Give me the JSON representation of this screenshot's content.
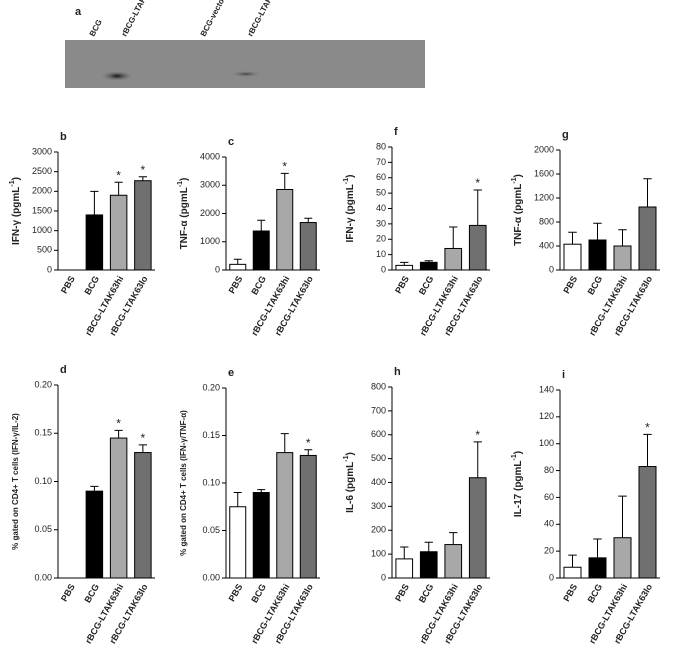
{
  "blot": {
    "label": "a",
    "lanes": [
      "BCG",
      "rBCG-LTAK63hi",
      "BCG-vector",
      "rBCG-LTAK63lo"
    ]
  },
  "chart_data": [
    {
      "type": "bar",
      "label": "b",
      "ylabel": [
        "IFN-γ (pgmL",
        "-1",
        ")"
      ],
      "categories": [
        "PBS",
        "BCG",
        "rBCG-LTAK63hi",
        "rBCG-LTAK63lo"
      ],
      "colors": [
        "#ffffff",
        "#000000",
        "#a8a8a8",
        "#707070"
      ],
      "values": [
        0,
        1400,
        1900,
        2270
      ],
      "errors": [
        0,
        600,
        330,
        100
      ],
      "significance": [
        null,
        null,
        "*",
        "*"
      ],
      "ylim": [
        0,
        3000
      ],
      "yticks": [
        0,
        500,
        1000,
        1500,
        2000,
        2500,
        3000
      ]
    },
    {
      "type": "bar",
      "label": "c",
      "ylabel": [
        "TNF-α (pgmL",
        "-1",
        ")"
      ],
      "categories": [
        "PBS",
        "BCG",
        "rBCG-LTAK63hi",
        "rBCG-LTAK63lo"
      ],
      "colors": [
        "#ffffff",
        "#000000",
        "#a8a8a8",
        "#707070"
      ],
      "values": [
        200,
        1380,
        2850,
        1680
      ],
      "errors": [
        180,
        380,
        570,
        150
      ],
      "significance": [
        null,
        null,
        "*",
        null
      ],
      "ylim": [
        0,
        4000
      ],
      "yticks": [
        0,
        1000,
        2000,
        3000,
        4000
      ]
    },
    {
      "type": "bar",
      "label": "f",
      "ylabel": [
        "IFN-γ (pgmL",
        "-1",
        ")"
      ],
      "categories": [
        "PBS",
        "BCG",
        "rBCG-LTAK63hi",
        "rBCG-LTAK63lo"
      ],
      "colors": [
        "#ffffff",
        "#000000",
        "#a8a8a8",
        "#707070"
      ],
      "values": [
        3,
        5,
        14,
        29
      ],
      "errors": [
        2,
        1,
        14,
        23
      ],
      "significance": [
        null,
        null,
        null,
        "*"
      ],
      "ylim": [
        0,
        80
      ],
      "yticks": [
        0,
        10,
        20,
        30,
        40,
        50,
        60,
        70,
        80
      ]
    },
    {
      "type": "bar",
      "label": "g",
      "ylabel": [
        "TNF-α (pgmL",
        "-1",
        ")"
      ],
      "categories": [
        "PBS",
        "BCG",
        "rBCG-LTAK63hi",
        "rBCG-LTAK63lo"
      ],
      "colors": [
        "#ffffff",
        "#000000",
        "#a8a8a8",
        "#707070"
      ],
      "values": [
        430,
        500,
        400,
        1050
      ],
      "errors": [
        200,
        280,
        270,
        470
      ],
      "significance": [
        null,
        null,
        null,
        null
      ],
      "ylim": [
        0,
        2000
      ],
      "yticks": [
        0,
        400,
        800,
        1200,
        1600,
        2000
      ]
    },
    {
      "type": "bar",
      "label": "d",
      "ylabel": [
        "% gated on CD4+ T cells (IFN-γ/IL-2)"
      ],
      "categories": [
        "PBS",
        "BCG",
        "rBCG-LTAK63hi",
        "rBCG-LTAK63lo"
      ],
      "colors": [
        "#ffffff",
        "#000000",
        "#a8a8a8",
        "#707070"
      ],
      "values": [
        0,
        0.09,
        0.145,
        0.13
      ],
      "errors": [
        0,
        0.005,
        0.008,
        0.008
      ],
      "significance": [
        null,
        null,
        "*",
        "*"
      ],
      "ylim": [
        0,
        0.2
      ],
      "yticks": [
        {
          "value": 0,
          "label": "0.00"
        },
        {
          "value": 0.05,
          "label": "0.05"
        },
        {
          "value": 0.1,
          "label": "0.10"
        },
        {
          "value": 0.15,
          "label": "0.15"
        },
        {
          "value": 0.2,
          "label": "0.20"
        }
      ]
    },
    {
      "type": "bar",
      "label": "e",
      "ylabel": [
        "% gated on CD4+ T cells (IFN-γ/TNF-α)"
      ],
      "categories": [
        "PBS",
        "BCG",
        "rBCG-LTAK63hi",
        "rBCG-LTAK63lo"
      ],
      "colors": [
        "#ffffff",
        "#000000",
        "#a8a8a8",
        "#707070"
      ],
      "values": [
        0.075,
        0.09,
        0.132,
        0.129
      ],
      "errors": [
        0.015,
        0.003,
        0.02,
        0.006
      ],
      "significance": [
        null,
        null,
        null,
        "*"
      ],
      "ylim": [
        0,
        0.2
      ],
      "yticks": [
        {
          "value": 0,
          "label": "0.00"
        },
        {
          "value": 0.05,
          "label": "0.05"
        },
        {
          "value": 0.1,
          "label": "0.10"
        },
        {
          "value": 0.15,
          "label": "0.15"
        },
        {
          "value": 0.2,
          "label": "0.20"
        }
      ]
    },
    {
      "type": "bar",
      "label": "h",
      "ylabel": [
        "IL-6 (pgmL",
        "-1",
        ")"
      ],
      "categories": [
        "PBS",
        "BCG",
        "rBCG-LTAK63hi",
        "rBCG-LTAK63lo"
      ],
      "colors": [
        "#ffffff",
        "#000000",
        "#a8a8a8",
        "#707070"
      ],
      "values": [
        80,
        110,
        140,
        420
      ],
      "errors": [
        50,
        40,
        50,
        150
      ],
      "significance": [
        null,
        null,
        null,
        "*"
      ],
      "ylim": [
        0,
        800
      ],
      "yticks": [
        0,
        100,
        200,
        300,
        400,
        500,
        600,
        700,
        800
      ]
    },
    {
      "type": "bar",
      "label": "i",
      "ylabel": [
        "IL-17 (pgmL",
        "-1",
        ")"
      ],
      "categories": [
        "PBS",
        "BCG",
        "rBCG-LTAK63hi",
        "rBCG-LTAK63lo"
      ],
      "colors": [
        "#ffffff",
        "#000000",
        "#a8a8a8",
        "#707070"
      ],
      "values": [
        8,
        15,
        30,
        83
      ],
      "errors": [
        9,
        14,
        31,
        24
      ],
      "significance": [
        null,
        null,
        null,
        "*"
      ],
      "ylim": [
        0,
        140
      ],
      "yticks": [
        0,
        20,
        40,
        60,
        80,
        100,
        120,
        140
      ]
    }
  ]
}
